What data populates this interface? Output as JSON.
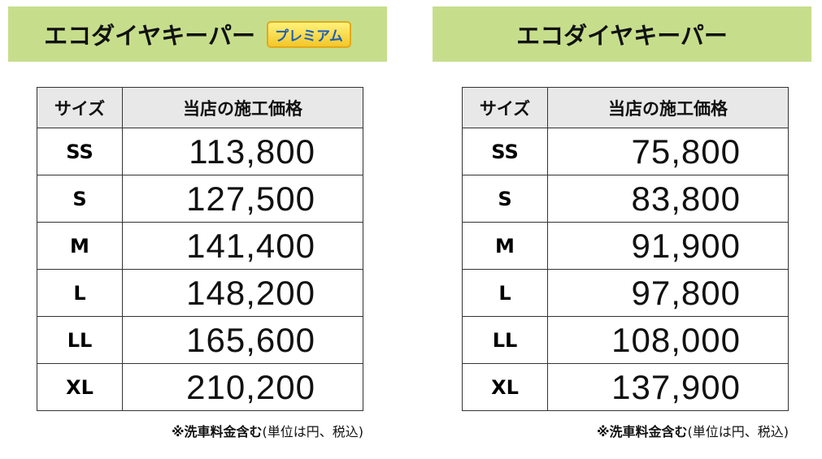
{
  "panels": [
    {
      "title": "エコダイヤキーパー",
      "badge": "プレミアム",
      "table": {
        "header": [
          "サイズ",
          "当店の施工価格"
        ],
        "rows": [
          [
            "SS",
            "113,800"
          ],
          [
            "S",
            "127,500"
          ],
          [
            "M",
            "141,400"
          ],
          [
            "L",
            "148,200"
          ],
          [
            "LL",
            "165,600"
          ],
          [
            "XL",
            "210,200"
          ]
        ]
      },
      "note": {
        "bold": "※洗車料金含む",
        "normal": "(単位は円、税込)"
      }
    },
    {
      "title": "エコダイヤキーパー",
      "table": {
        "header": [
          "サイズ",
          "当店の施工価格"
        ],
        "rows": [
          [
            "SS",
            "75,800"
          ],
          [
            "S",
            "83,800"
          ],
          [
            "M",
            "91,900"
          ],
          [
            "L",
            "97,800"
          ],
          [
            "LL",
            "108,000"
          ],
          [
            "XL",
            "137,900"
          ]
        ]
      },
      "note": {
        "bold": "※洗車料金含む",
        "normal": "(単位は円、税込)"
      }
    }
  ]
}
